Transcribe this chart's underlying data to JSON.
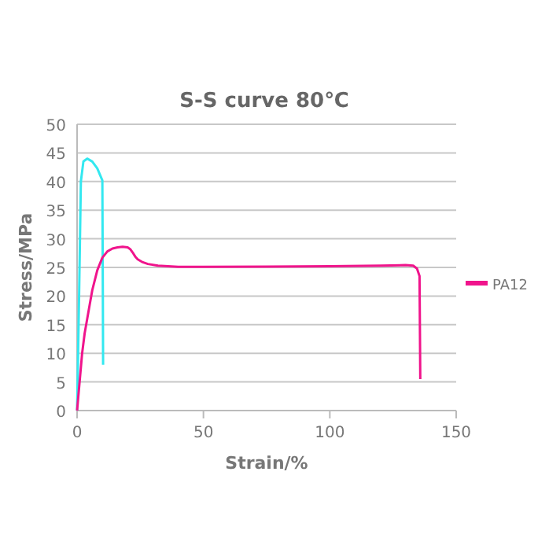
{
  "chart_data": {
    "type": "line",
    "title": "S-S curve 80℃",
    "xlabel": "Strain/%",
    "ylabel": "Stress/MPa",
    "xlim": [
      0,
      150
    ],
    "xticks": [
      0,
      50,
      100,
      150
    ],
    "ylim": [
      0,
      50
    ],
    "yticks": [
      0,
      5,
      10,
      15,
      20,
      25,
      30,
      35,
      40,
      45,
      50
    ],
    "grid": "y",
    "legend": "right",
    "marker": "none",
    "line_style": "solid",
    "series": [
      {
        "color": "#33e8f0",
        "x": [
          0,
          0.8,
          1.5,
          2.5,
          4,
          6,
          8,
          10,
          10.2,
          10.3
        ],
        "values": [
          0,
          20,
          40,
          43.5,
          44,
          43.5,
          42.3,
          40.2,
          20,
          8
        ]
      },
      {
        "name": "PA12",
        "color": "#f0148c",
        "x": [
          0,
          1,
          2,
          3,
          4,
          5,
          6,
          8,
          10,
          12,
          14,
          16,
          18,
          20,
          21,
          22,
          23,
          24,
          26,
          28,
          32,
          40,
          50,
          75,
          100,
          120,
          130,
          133,
          134.5,
          135.5,
          135.8
        ],
        "values": [
          0,
          5,
          10,
          13.5,
          16,
          18.5,
          21,
          24.5,
          26.7,
          27.8,
          28.3,
          28.5,
          28.6,
          28.5,
          28.2,
          27.6,
          26.9,
          26.4,
          25.9,
          25.6,
          25.3,
          25.1,
          25.1,
          25.15,
          25.2,
          25.3,
          25.4,
          25.3,
          24.8,
          23.5,
          5.5
        ]
      }
    ]
  }
}
